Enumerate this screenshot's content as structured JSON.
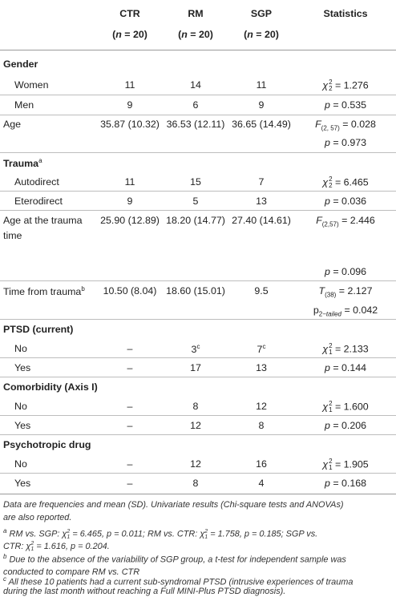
{
  "header": {
    "cols": [
      {
        "name": "CTR",
        "n": "(n = 20)"
      },
      {
        "name": "RM",
        "n": "(n = 20)"
      },
      {
        "name": "SGP",
        "n": "(n = 20)"
      },
      {
        "name": "Statistics",
        "n": ""
      }
    ]
  },
  "sections": {
    "gender": {
      "title": "Gender",
      "women": {
        "label": "Women",
        "ctr": "11",
        "rm": "14",
        "sgp": "11",
        "stat": "χ22 = 1.276"
      },
      "men": {
        "label": "Men",
        "ctr": "9",
        "rm": "6",
        "sgp": "9",
        "stat": "p = 0.535"
      }
    },
    "age": {
      "label": "Age",
      "ctr": "35.87 (10.32)",
      "rm": "36.53 (12.11)",
      "sgp": "36.65 (14.49)",
      "stat": "F(2, 57) = 0.028",
      "stat2": "p = 0.973"
    },
    "trauma": {
      "title": "Trauma",
      "title_sup": "a",
      "autodirect": {
        "label": "Autodirect",
        "ctr": "11",
        "rm": "15",
        "sgp": "7",
        "stat": "χ22 = 6.465"
      },
      "eterodirect": {
        "label": "Eterodirect",
        "ctr": "9",
        "rm": "5",
        "sgp": "13",
        "stat": "p = 0.036"
      }
    },
    "age_trauma": {
      "label1": "Age at the trauma",
      "label2": "time",
      "ctr": "25.90 (12.89)",
      "rm": "18.20 (14.77)",
      "sgp": "27.40 (14.61)",
      "stat": "F(2,57) = 2.446",
      "stat2": "p = 0.096"
    },
    "time_trauma": {
      "label": "Time from trauma",
      "label_sup": "b",
      "ctr": "10.50 (8.04)",
      "rm": "18.60 (15.01)",
      "sgp": "9.5",
      "stat": "T(38) = 2.127",
      "stat2": "p2−tailed = 0.042"
    },
    "ptsd": {
      "title": "PTSD (current)",
      "no": {
        "label": "No",
        "ctr": "–",
        "rm": "3",
        "rm_sup": "c",
        "sgp": "7",
        "sgp_sup": "c",
        "stat": "χ12 = 2.133"
      },
      "yes": {
        "label": "Yes",
        "ctr": "–",
        "rm": "17",
        "sgp": "13",
        "stat": "p = 0.144"
      }
    },
    "comorbidity": {
      "title": "Comorbidity (Axis I)",
      "no": {
        "label": "No",
        "ctr": "–",
        "rm": "8",
        "sgp": "12",
        "stat": "χ12 = 1.600"
      },
      "yes": {
        "label": "Yes",
        "ctr": "–",
        "rm": "12",
        "sgp": "8",
        "stat": "p = 0.206"
      }
    },
    "drug": {
      "title": "Psychotropic drug",
      "no": {
        "label": "No",
        "ctr": "–",
        "rm": "12",
        "sgp": "16",
        "stat": "χ12 = 1.905"
      },
      "yes": {
        "label": "Yes",
        "ctr": "–",
        "rm": "8",
        "sgp": "4",
        "stat": "p = 0.168"
      }
    }
  },
  "footnotes": {
    "main1": "Data are frequencies and mean (SD). Univariate results (Chi-square tests and ANOVAs)",
    "main2": "are also reported.",
    "a1": "RM vs. SGP: χ12 = 6.465, p = 0.011; RM vs. CTR: χ12 = 1.758, p = 0.185; SGP vs.",
    "a2": "CTR: χ12 = 1.616, p = 0.204.",
    "b1": "Due to the absence of the variability of SGP group, a t-test for independent sample was",
    "b2": "conducted to compare RM vs. CTR",
    "c1": "All these 10 patients had a current sub-syndromal PTSD (intrusive experiences of trauma",
    "c2": "during the last month without reaching a Full MINI-Plus PTSD diagnosis)."
  }
}
